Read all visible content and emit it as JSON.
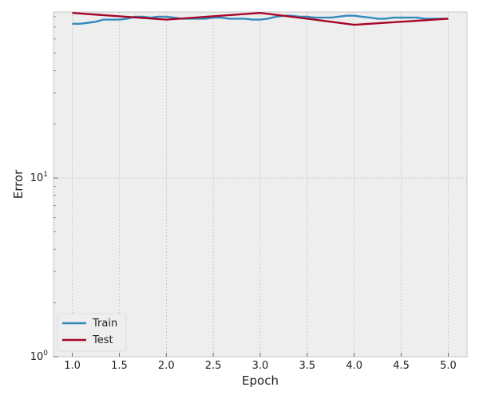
{
  "chart_data": {
    "type": "line",
    "title": "",
    "xlabel": "Epoch",
    "ylabel": "Error",
    "xlim": [
      0.8,
      5.2
    ],
    "ylim": [
      1,
      85
    ],
    "yscale": "log",
    "grid": true,
    "legend_position": "lower-left",
    "x_ticks": [
      1.0,
      1.5,
      2.0,
      2.5,
      3.0,
      3.5,
      4.0,
      4.5,
      5.0
    ],
    "x_tick_labels": [
      "1.0",
      "1.5",
      "2.0",
      "2.5",
      "3.0",
      "3.5",
      "4.0",
      "4.5",
      "5.0"
    ],
    "y_ticks": [
      {
        "value": 1,
        "base": "10",
        "exp": "0"
      },
      {
        "value": 10,
        "base": "10",
        "exp": "1"
      }
    ],
    "series": [
      {
        "name": "Train",
        "color": "#348ABD",
        "x": [
          1.0,
          1.08,
          1.17,
          1.25,
          1.33,
          1.42,
          1.5,
          1.58,
          1.67,
          1.75,
          1.83,
          1.92,
          2.0,
          2.08,
          2.17,
          2.25,
          2.33,
          2.42,
          2.5,
          2.58,
          2.67,
          2.75,
          2.83,
          2.92,
          3.0,
          3.08,
          3.17,
          3.25,
          3.33,
          3.42,
          3.5,
          3.58,
          3.67,
          3.75,
          3.83,
          3.92,
          4.0,
          4.08,
          4.17,
          4.25,
          4.33,
          4.42,
          4.5,
          4.58,
          4.67,
          4.75,
          4.83,
          4.92,
          5.0
        ],
        "y": [
          73,
          73,
          74,
          75,
          77,
          77,
          77,
          78,
          80,
          80,
          79,
          80,
          80,
          79,
          78,
          78,
          78,
          78,
          79,
          79,
          78,
          78,
          78,
          77,
          77,
          78,
          80,
          81,
          81,
          80,
          80,
          79,
          79,
          79,
          80,
          81,
          81,
          80,
          79,
          78,
          78,
          79,
          79,
          79,
          79,
          78,
          78,
          78,
          78
        ]
      },
      {
        "name": "Test",
        "color": "#A60628",
        "x": [
          1.0,
          2.0,
          3.0,
          3.5,
          4.0,
          5.0
        ],
        "y": [
          84,
          77,
          84,
          78,
          72,
          78
        ]
      }
    ]
  }
}
